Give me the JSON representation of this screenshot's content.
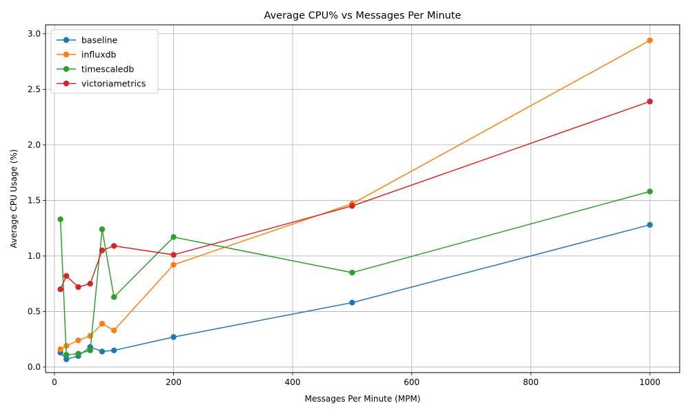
{
  "chart_data": {
    "type": "line",
    "title": "Average CPU% vs Messages Per Minute",
    "xlabel": "Messages Per Minute (MPM)",
    "ylabel": "Average CPU Usage (%)",
    "xlim": [
      -15,
      1050
    ],
    "ylim": [
      -0.05,
      3.08
    ],
    "xticks": [
      0,
      200,
      400,
      600,
      800,
      1000
    ],
    "yticks": [
      0.0,
      0.5,
      1.0,
      1.5,
      2.0,
      2.5,
      3.0
    ],
    "xtick_labels": [
      "0",
      "200",
      "400",
      "600",
      "800",
      "1000"
    ],
    "ytick_labels": [
      "0.0",
      "0.5",
      "1.0",
      "1.5",
      "2.0",
      "2.5",
      "3.0"
    ],
    "grid": true,
    "legend_position": "top-left",
    "series": [
      {
        "name": "baseline",
        "color": "#1f77b4",
        "x": [
          10,
          20,
          40,
          60,
          80,
          100,
          200,
          500,
          1000
        ],
        "y": [
          0.13,
          0.07,
          0.1,
          0.18,
          0.14,
          0.15,
          0.27,
          0.58,
          1.28
        ]
      },
      {
        "name": "influxdb",
        "color": "#ff7f0e",
        "x": [
          10,
          20,
          40,
          60,
          80,
          100,
          200,
          500,
          1000
        ],
        "y": [
          0.16,
          0.19,
          0.24,
          0.28,
          0.39,
          0.33,
          0.92,
          1.47,
          2.94
        ]
      },
      {
        "name": "timescaledb",
        "color": "#2ca02c",
        "x": [
          10,
          20,
          40,
          60,
          80,
          100,
          200,
          500,
          1000
        ],
        "y": [
          1.33,
          0.11,
          0.12,
          0.15,
          1.24,
          0.63,
          1.17,
          0.85,
          1.58
        ]
      },
      {
        "name": "victoriametrics",
        "color": "#d62728",
        "x": [
          10,
          20,
          40,
          60,
          80,
          100,
          200,
          500,
          1000
        ],
        "y": [
          0.7,
          0.82,
          0.72,
          0.75,
          1.05,
          1.09,
          1.01,
          1.45,
          2.39
        ]
      }
    ]
  }
}
